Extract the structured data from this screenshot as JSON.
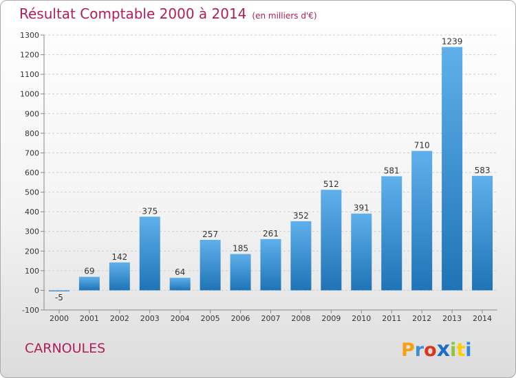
{
  "chart_data": {
    "type": "bar",
    "title": "Résultat Comptable 2000 à 2014",
    "subtitle": "(en milliers d'€)",
    "categories": [
      "2000",
      "2001",
      "2002",
      "2003",
      "2004",
      "2005",
      "2006",
      "2007",
      "2008",
      "2009",
      "2010",
      "2011",
      "2012",
      "2013",
      "2014"
    ],
    "values": [
      -5,
      69,
      142,
      375,
      64,
      257,
      185,
      261,
      352,
      512,
      391,
      581,
      710,
      1239,
      583
    ],
    "ylim": [
      -100,
      1300
    ],
    "yticks": [
      -100,
      0,
      100,
      200,
      300,
      400,
      500,
      600,
      700,
      800,
      900,
      1000,
      1100,
      1200,
      1300
    ],
    "xlabel": "",
    "ylabel": "",
    "grid": "horizontal dashed",
    "colors": {
      "bar_light": "#5fb0ea",
      "bar_dark": "#1e74b6",
      "title": "#b01e57"
    }
  },
  "footer": {
    "place": "CARNOULES"
  },
  "brand": {
    "letters": [
      "P",
      "r",
      "o",
      "x",
      "i",
      "t",
      "i"
    ],
    "colors": [
      "#f5a00f",
      "#3b8fd9",
      "#e1321e",
      "#1b6fc4",
      "#8cc63f",
      "#ffcc00",
      "#2e8bdc"
    ]
  }
}
